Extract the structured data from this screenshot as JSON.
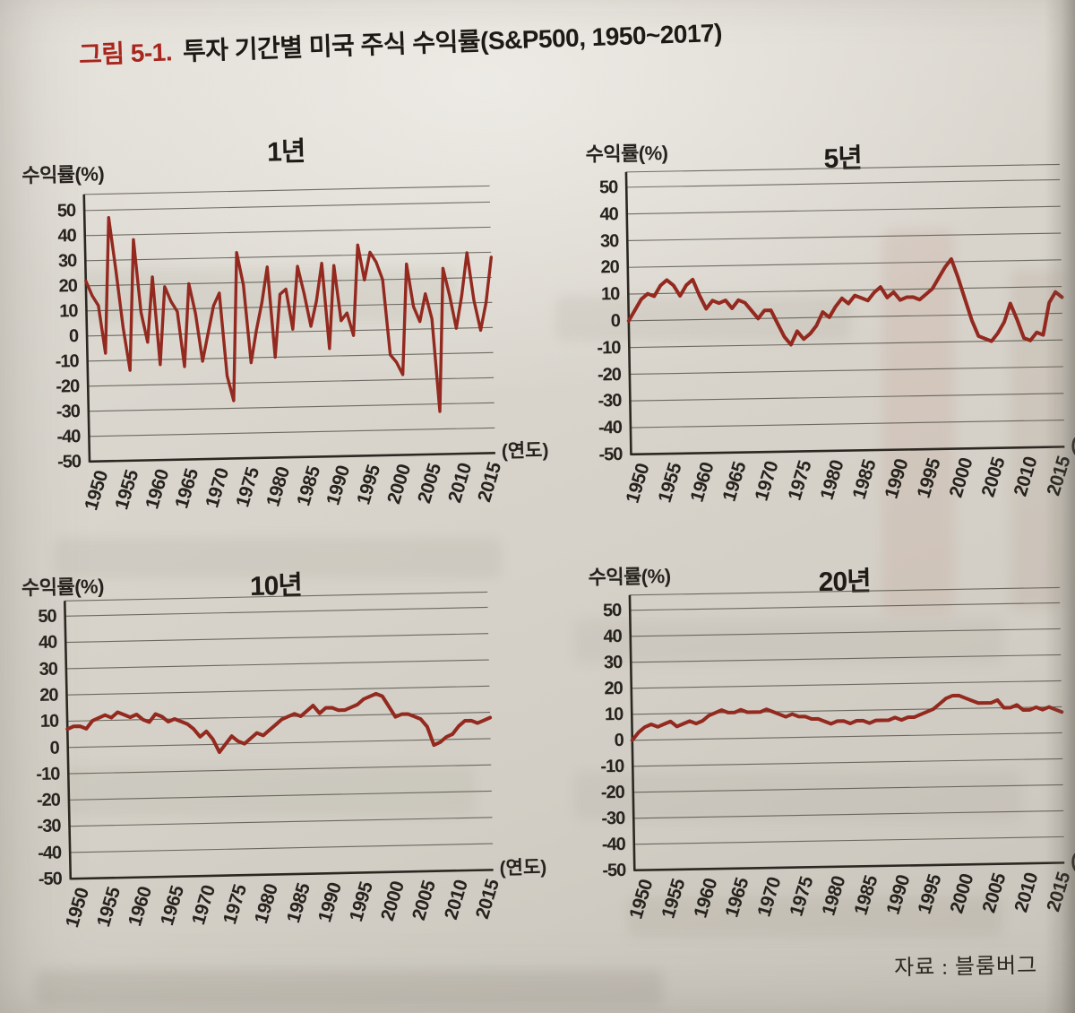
{
  "page": {
    "figure_label": "그림 5-1.",
    "figure_title": "투자 기간별 미국 주식 수익률(S&P500, 1950~2017)",
    "source": "자료 : 블룸버그"
  },
  "colors": {
    "line": "#93291f",
    "grid": "rgba(72,69,61,0.75)",
    "axis": "#2b2822",
    "accent_red": "#a8261e",
    "paper": "#d8d4cb",
    "text": "#26231e"
  },
  "chart_data": {
    "type": "line",
    "title": "투자 기간별 미국 주식 수익률(S&P500, 1950~2017)",
    "y_label": "수익률(%)",
    "x_label": "(연도)",
    "ylim": [
      -50,
      50
    ],
    "grid": true,
    "legend_position": "none (four titled subplots)",
    "y_ticks": [
      50,
      40,
      30,
      20,
      10,
      0,
      -10,
      -20,
      -30,
      -40,
      -50
    ],
    "x_ticks": [
      1950,
      1955,
      1960,
      1965,
      1970,
      1975,
      1980,
      1985,
      1990,
      1995,
      2000,
      2005,
      2010,
      2015
    ],
    "x": [
      1950,
      1951,
      1952,
      1953,
      1954,
      1955,
      1956,
      1957,
      1958,
      1959,
      1960,
      1961,
      1962,
      1963,
      1964,
      1965,
      1966,
      1967,
      1968,
      1969,
      1970,
      1971,
      1972,
      1973,
      1974,
      1975,
      1976,
      1977,
      1978,
      1979,
      1980,
      1981,
      1982,
      1983,
      1984,
      1985,
      1986,
      1987,
      1988,
      1989,
      1990,
      1991,
      1992,
      1993,
      1994,
      1995,
      1996,
      1997,
      1998,
      1999,
      2000,
      2001,
      2002,
      2003,
      2004,
      2005,
      2006,
      2007,
      2008,
      2009,
      2010,
      2011,
      2012,
      2013,
      2014,
      2015,
      2016,
      2017
    ],
    "series": [
      {
        "name": "1년",
        "values": [
          22,
          16,
          12,
          -7,
          47,
          26,
          3,
          -14,
          38,
          9,
          -3,
          23,
          -12,
          19,
          13,
          9,
          -13,
          20,
          8,
          -11,
          0,
          11,
          16,
          -17,
          -27,
          32,
          19,
          -12,
          1,
          12,
          26,
          -10,
          15,
          17,
          1,
          26,
          15,
          2,
          12,
          27,
          -7,
          26,
          4,
          7,
          -2,
          34,
          20,
          31,
          27,
          20,
          -10,
          -13,
          -18,
          26,
          9,
          3,
          14,
          4,
          -33,
          24,
          13,
          0,
          13,
          30,
          11,
          -1,
          10,
          28
        ]
      },
      {
        "name": "5년",
        "values": [
          0,
          4,
          8,
          10,
          9,
          13,
          15,
          13,
          9,
          13,
          15,
          9,
          4,
          7,
          6,
          7,
          4,
          7,
          6,
          3,
          0,
          3,
          3,
          -2,
          -7,
          -10,
          -5,
          -8,
          -6,
          -3,
          2,
          0,
          4,
          7,
          5,
          8,
          7,
          6,
          9,
          11,
          7,
          9,
          6,
          7,
          7,
          6,
          8,
          10,
          14,
          18,
          21,
          14,
          6,
          -2,
          -8,
          -9,
          -10,
          -7,
          -3,
          4,
          -2,
          -9,
          -10,
          -7,
          -8,
          4,
          8,
          6
        ]
      },
      {
        "name": "10년",
        "values": [
          7,
          8,
          8,
          7,
          10,
          11,
          12,
          11,
          13,
          12,
          11,
          12,
          10,
          9,
          12,
          11,
          9,
          10,
          9,
          8,
          6,
          3,
          5,
          2,
          -3,
          0,
          3,
          1,
          0,
          2,
          4,
          3,
          5,
          7,
          9,
          10,
          11,
          10,
          12,
          14,
          11,
          13,
          13,
          12,
          12,
          13,
          14,
          16,
          17,
          18,
          17,
          13,
          9,
          10,
          10,
          9,
          8,
          5,
          -2,
          -1,
          1,
          2,
          5,
          7,
          7,
          6,
          7,
          8
        ]
      },
      {
        "name": "20년",
        "values": [
          0,
          3,
          5,
          6,
          5,
          6,
          7,
          5,
          6,
          7,
          6,
          7,
          9,
          10,
          11,
          10,
          10,
          11,
          10,
          10,
          10,
          11,
          10,
          9,
          8,
          9,
          8,
          8,
          7,
          7,
          6,
          5,
          6,
          6,
          5,
          6,
          6,
          5,
          6,
          6,
          6,
          7,
          6,
          7,
          7,
          8,
          9,
          10,
          12,
          14,
          15,
          15,
          14,
          13,
          12,
          12,
          12,
          13,
          10,
          10,
          11,
          9,
          9,
          10,
          9,
          10,
          9,
          8
        ]
      }
    ]
  }
}
